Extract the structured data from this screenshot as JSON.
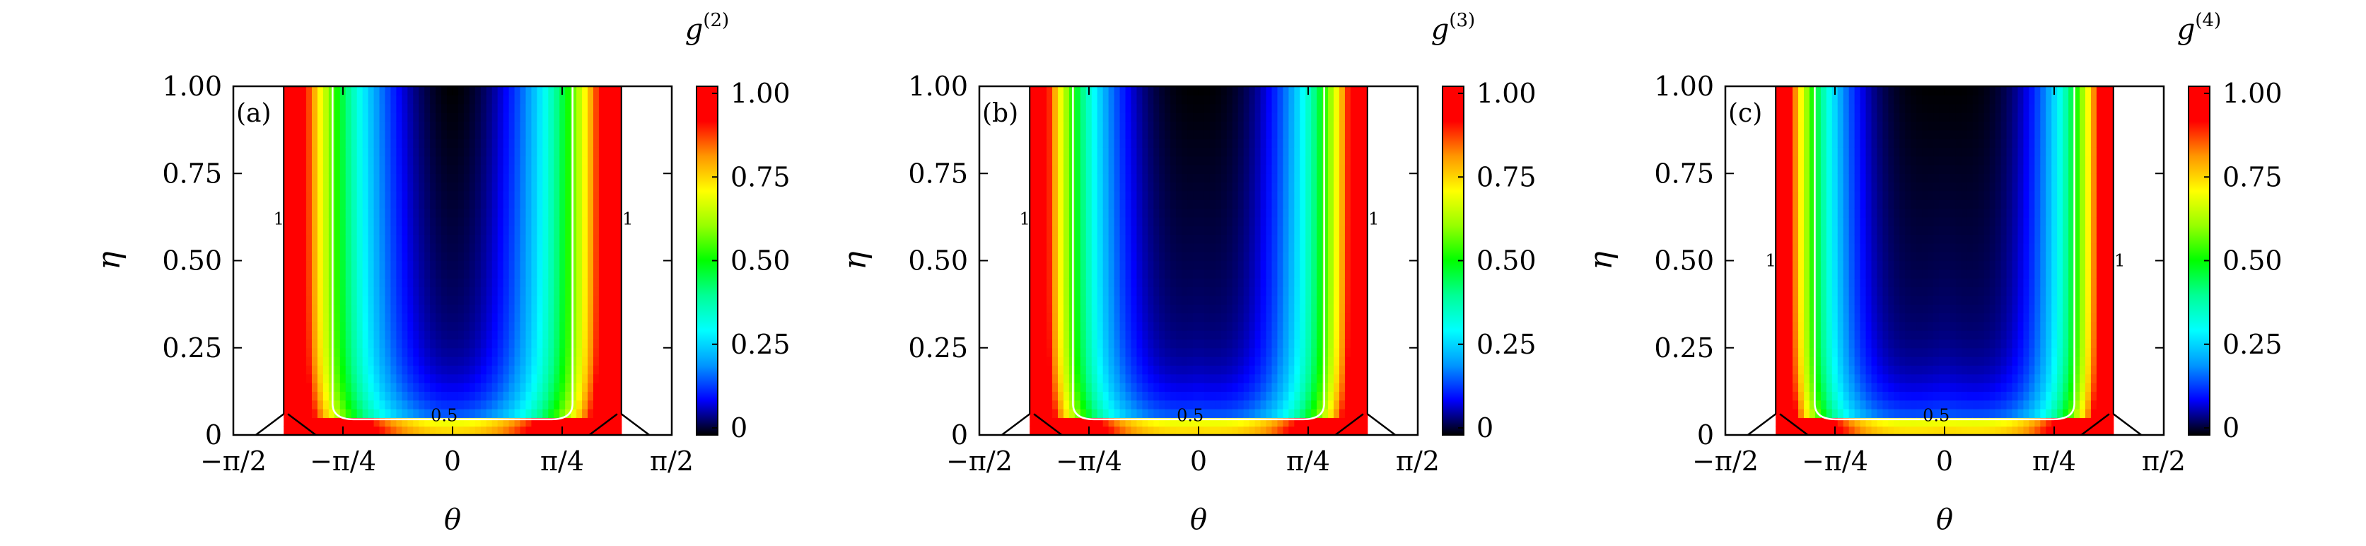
{
  "chart_data": [
    {
      "type": "heatmap",
      "panel_label": "(a)",
      "colorbar_label_base": "g",
      "colorbar_label_sup": "(2)",
      "xlabel": "θ",
      "ylabel": "η",
      "xticks": [
        "−π/2",
        "−π/4",
        "0",
        "π/4",
        "π/2"
      ],
      "yticks": [
        "0",
        "0.25",
        "0.50",
        "0.75",
        "1.00"
      ],
      "cbar_ticks": [
        "0",
        "0.25",
        "0.50",
        "0.75",
        "1.00"
      ],
      "xlim": [
        -1.5708,
        1.5708
      ],
      "ylim": [
        0,
        1
      ],
      "clim": [
        0,
        1
      ],
      "region_theta_max": 1.21,
      "contours": [
        {
          "level": "0.5",
          "label": "0.5",
          "color": "#ffffff"
        },
        {
          "level": "1",
          "label": "1",
          "color": "#000000"
        }
      ]
    },
    {
      "type": "heatmap",
      "panel_label": "(b)",
      "colorbar_label_base": "g",
      "colorbar_label_sup": "(3)",
      "xlabel": "θ",
      "ylabel": "η",
      "xticks": [
        "−π/2",
        "−π/4",
        "0",
        "π/4",
        "π/2"
      ],
      "yticks": [
        "0",
        "0.25",
        "0.50",
        "0.75",
        "1.00"
      ],
      "cbar_ticks": [
        "0",
        "0.25",
        "0.50",
        "0.75",
        "1.00"
      ],
      "xlim": [
        -1.5708,
        1.5708
      ],
      "ylim": [
        0,
        1
      ],
      "clim": [
        0,
        1
      ],
      "region_theta_max": 1.21,
      "contours": [
        {
          "level": "0.5",
          "label": "0.5",
          "color": "#ffffff"
        },
        {
          "level": "1",
          "label": "1",
          "color": "#000000"
        }
      ]
    },
    {
      "type": "heatmap",
      "panel_label": "(c)",
      "colorbar_label_base": "g",
      "colorbar_label_sup": "(4)",
      "xlabel": "θ",
      "ylabel": "η",
      "xticks": [
        "−π/2",
        "−π/4",
        "0",
        "π/4",
        "π/2"
      ],
      "yticks": [
        "0",
        "0.25",
        "0.50",
        "0.75",
        "1.00"
      ],
      "cbar_ticks": [
        "0",
        "0.25",
        "0.50",
        "0.75",
        "1.00"
      ],
      "xlim": [
        -1.5708,
        1.5708
      ],
      "ylim": [
        0,
        1
      ],
      "clim": [
        0,
        1
      ],
      "region_theta_max": 1.21,
      "contours": [
        {
          "level": "0.5",
          "label": "0.5",
          "color": "#ffffff"
        },
        {
          "level": "1",
          "label": "1",
          "color": "#000000"
        }
      ]
    }
  ],
  "colormap": [
    "#000000",
    "#0000ff",
    "#0096ff",
    "#00ffff",
    "#00ff96",
    "#00ff00",
    "#96ff00",
    "#ffff00",
    "#ff9600",
    "#ff0000",
    "#ff0000"
  ]
}
